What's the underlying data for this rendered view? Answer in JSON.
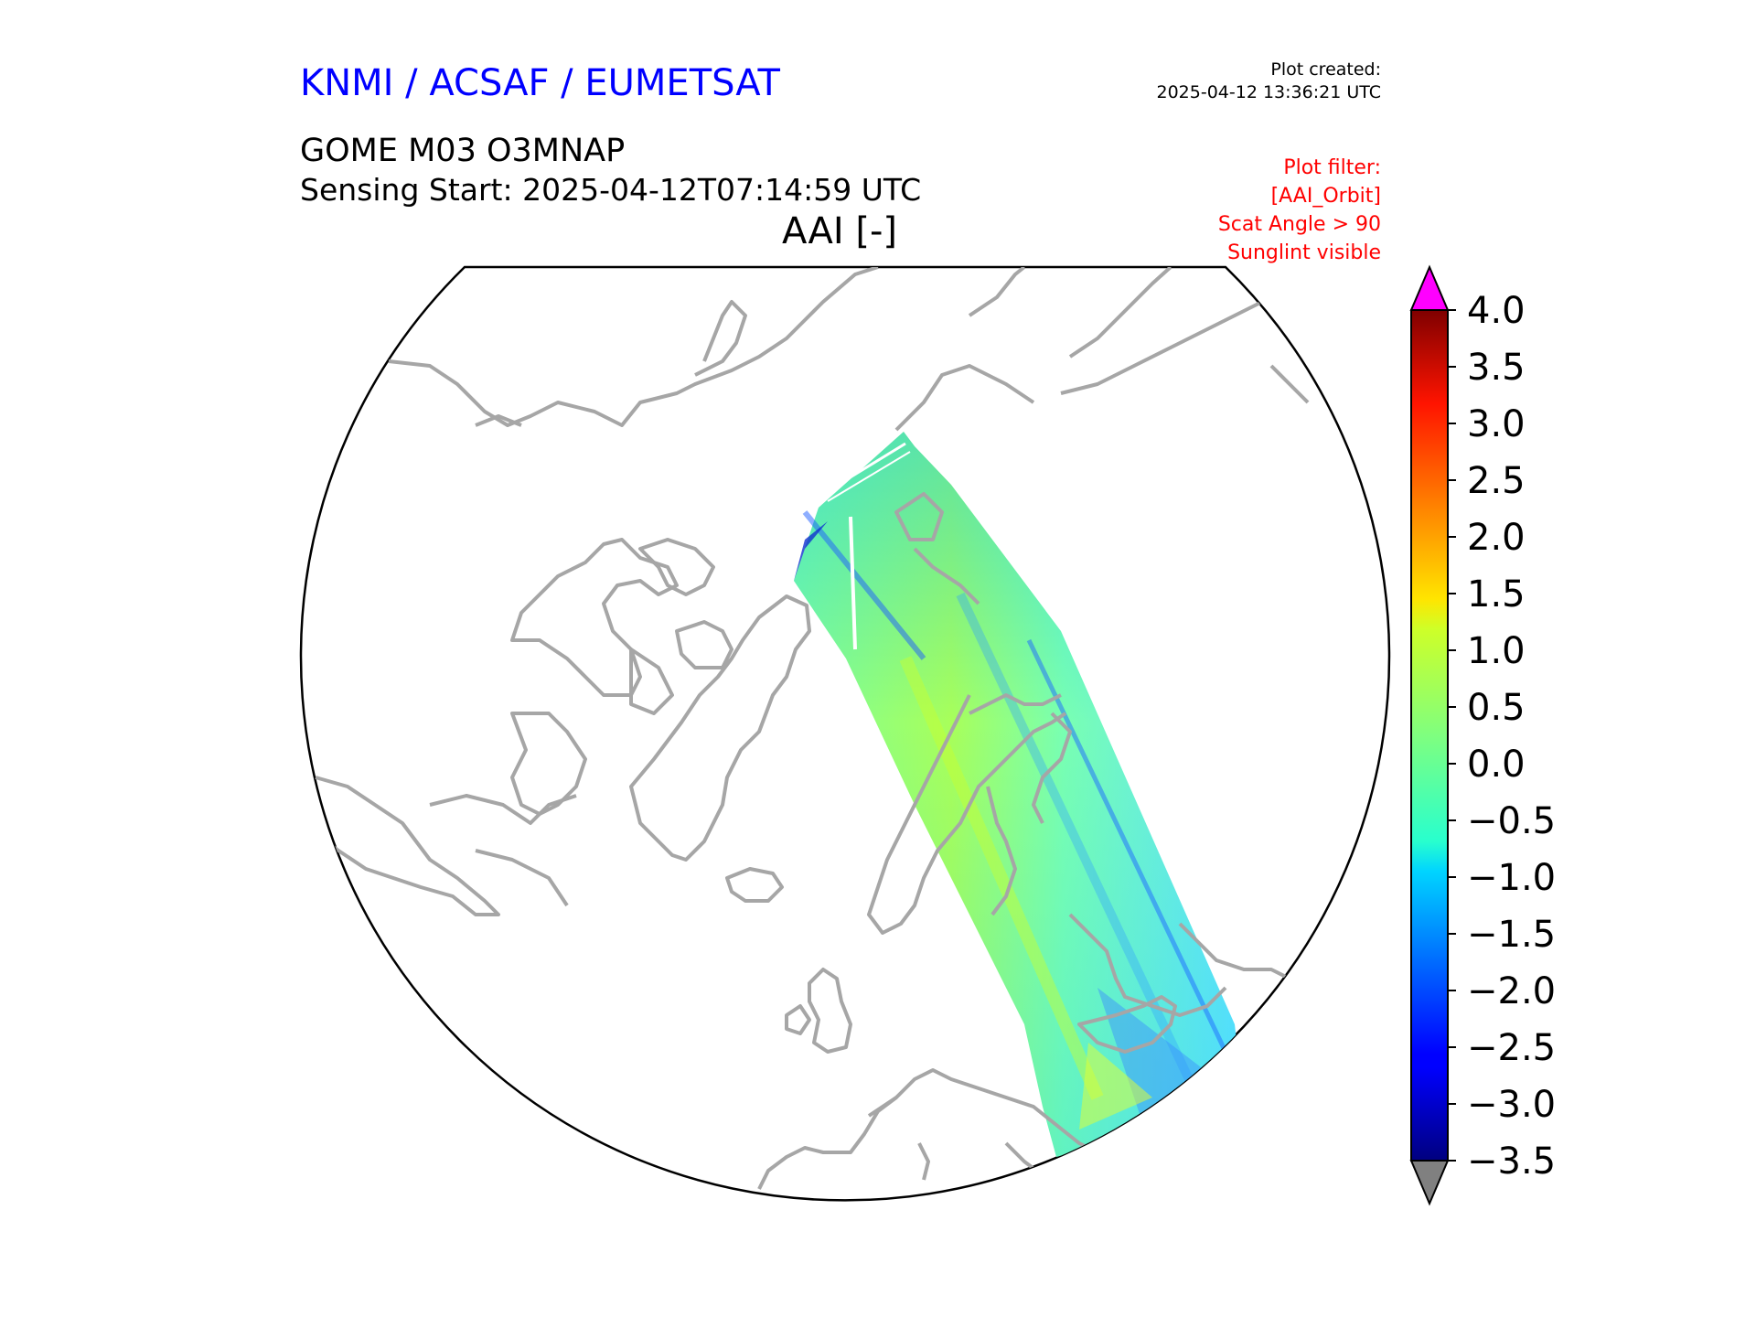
{
  "header": {
    "organization": "KNMI / ACSAF / EUMETSAT",
    "created_label": "Plot created:",
    "created_time": "2025-04-12 13:36:21 UTC",
    "product": "GOME M03 O3MNAP",
    "sensing_start": "Sensing Start: 2025-04-12T07:14:59 UTC",
    "map_title": "AAI [-]",
    "filter_lines": [
      "Plot filter:",
      "[AAI_Orbit]",
      "Scat Angle > 90",
      "Sunglint visible"
    ]
  },
  "colors": {
    "org_text": "#0000ff",
    "filter_text": "#ff0000",
    "coastline": "#a6a6a6",
    "over_color": "#ff00ff",
    "under_color": "#808080"
  },
  "colorbar": {
    "variable": "AAI",
    "min": -3.5,
    "max": 4.0,
    "ticks": [
      "4.0",
      "3.5",
      "3.0",
      "2.5",
      "2.0",
      "1.5",
      "1.0",
      "0.5",
      "0.0",
      "−0.5",
      "−1.0",
      "−1.5",
      "−2.0",
      "−2.5",
      "−3.0",
      "−3.5"
    ],
    "tick_values": [
      4.0,
      3.5,
      3.0,
      2.5,
      2.0,
      1.5,
      1.0,
      0.5,
      0.0,
      -0.5,
      -1.0,
      -1.5,
      -2.0,
      -2.5,
      -3.0,
      -3.5
    ],
    "colormap": "jet",
    "extend": "both"
  }
}
